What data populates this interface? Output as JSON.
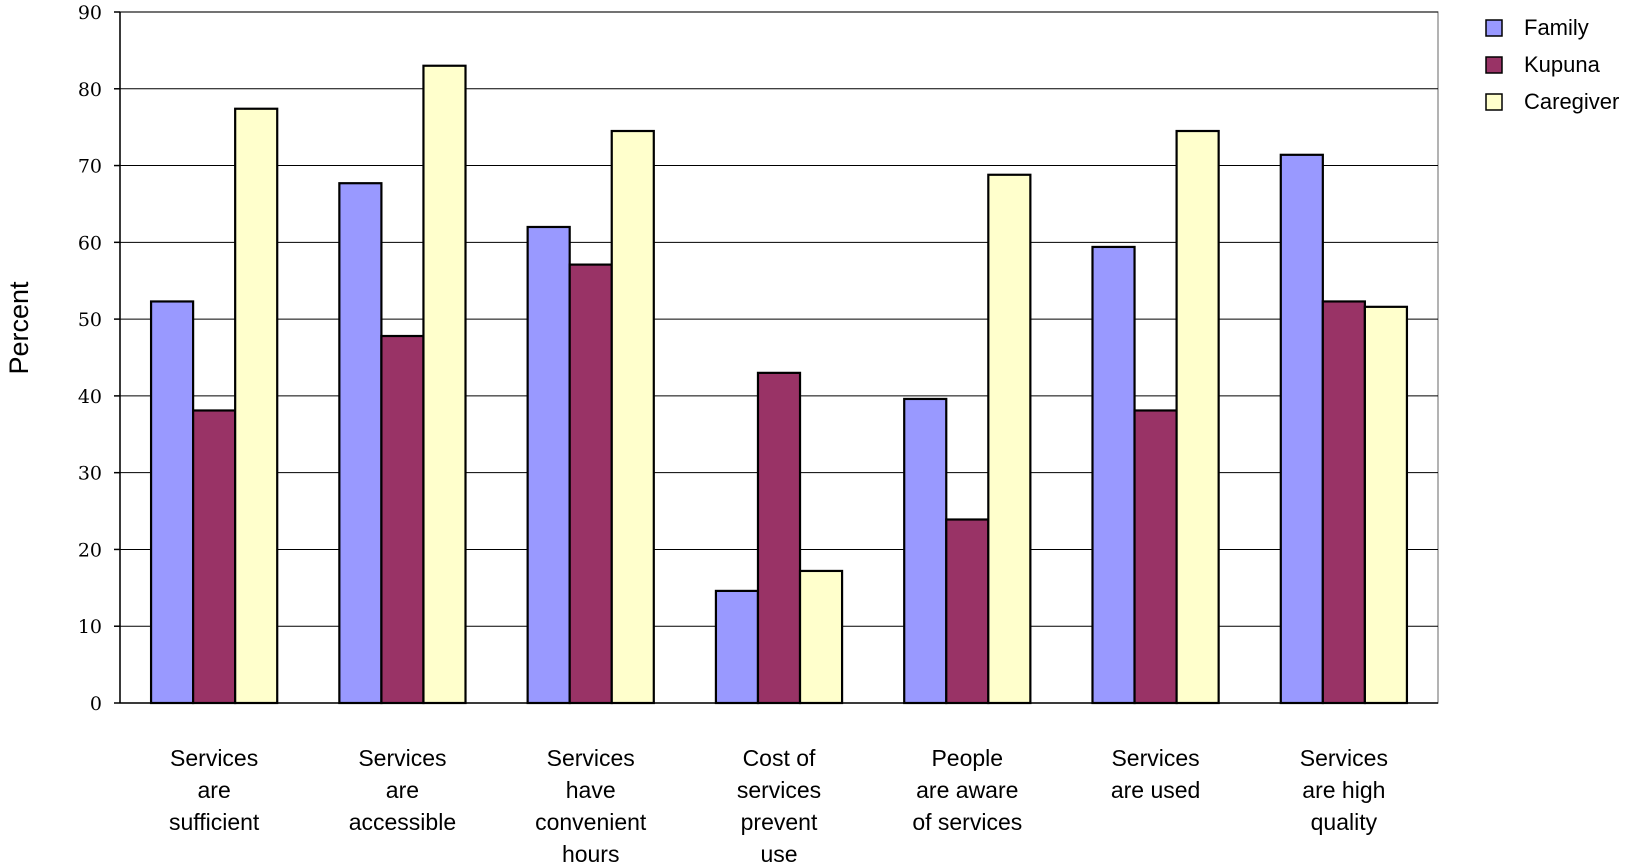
{
  "chart_data": {
    "type": "bar",
    "title": "",
    "xlabel": "",
    "ylabel": "Percent",
    "ylim": [
      0,
      90
    ],
    "yticks": [
      0,
      10,
      20,
      30,
      40,
      50,
      60,
      70,
      80,
      90
    ],
    "grid": true,
    "legend_position": "top-right",
    "categories": [
      [
        "Services",
        "are",
        "sufficient"
      ],
      [
        "Services",
        "are",
        "accessible"
      ],
      [
        "Services",
        "have",
        "convenient",
        "hours"
      ],
      [
        "Cost of",
        "services",
        "prevent",
        "use"
      ],
      [
        "People",
        "are aware",
        "of services"
      ],
      [
        "Services",
        "are used"
      ],
      [
        "Services",
        "are high",
        "quality"
      ]
    ],
    "series": [
      {
        "name": "Family",
        "color": "#9999FF",
        "values": [
          52.3,
          67.7,
          62.0,
          14.6,
          39.6,
          59.4,
          71.4
        ]
      },
      {
        "name": "Kupuna",
        "color": "#993366",
        "values": [
          38.1,
          47.8,
          57.1,
          43.0,
          23.9,
          38.1,
          52.3
        ]
      },
      {
        "name": "Caregiver",
        "color": "#FFFFCC",
        "values": [
          77.4,
          83.0,
          74.5,
          17.2,
          68.8,
          74.5,
          51.6
        ]
      }
    ]
  }
}
